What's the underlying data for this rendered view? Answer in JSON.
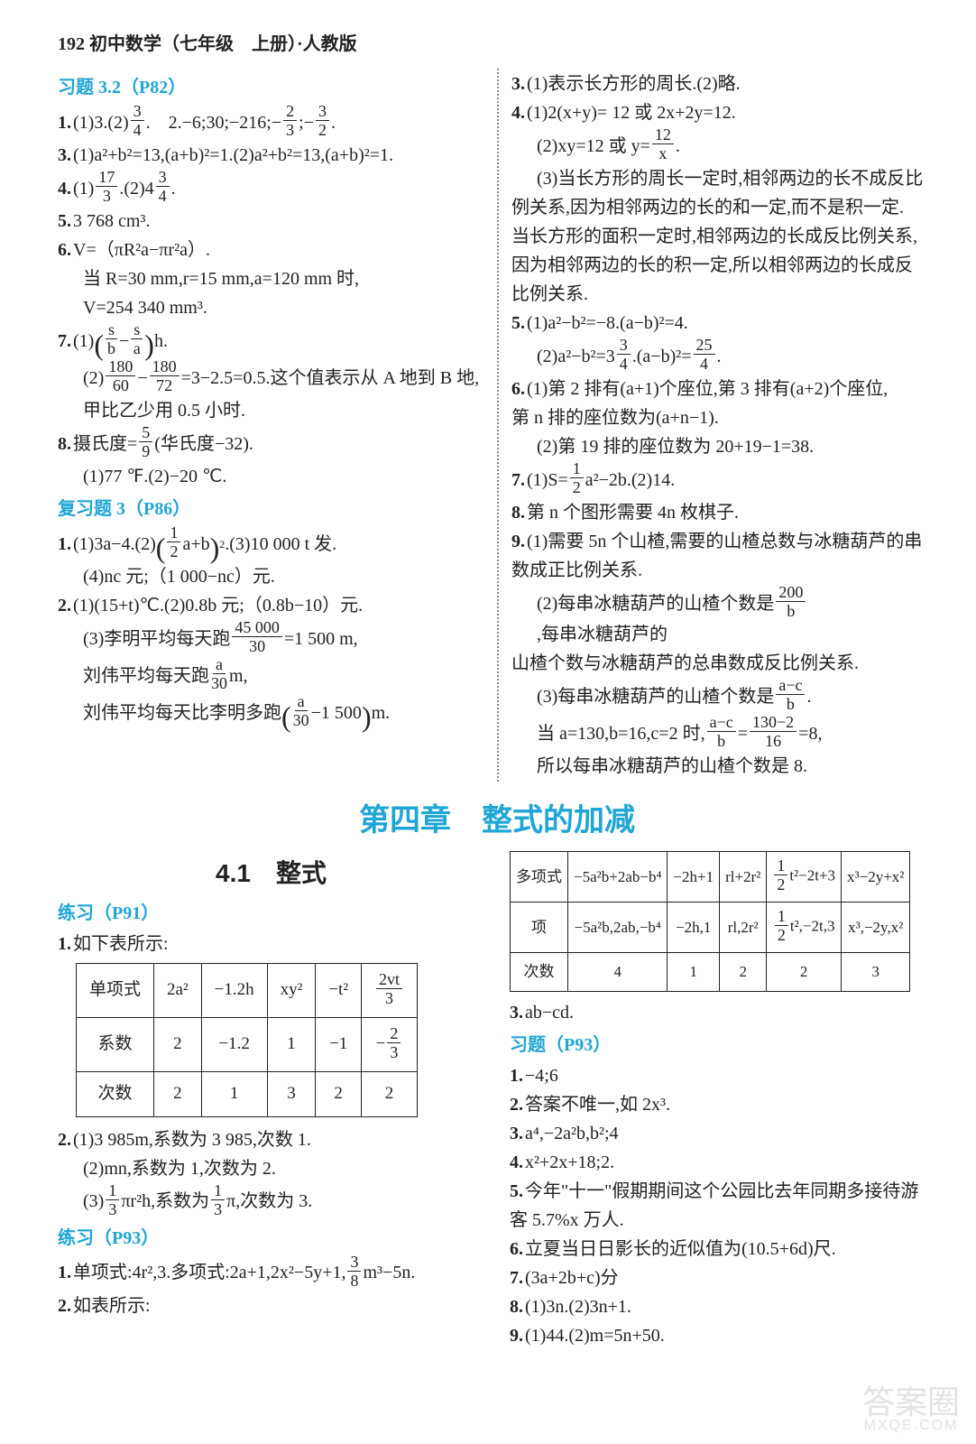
{
  "header": "192 初中数学（七年级　上册）·人教版",
  "top": {
    "left": {
      "sec1_title": "习题 3.2（P82）",
      "l1a": "1.",
      "l1b": "(1)3.(2)",
      "l1c": ".　2.−6;30;−216;−",
      "l1d": ";−",
      "l1e": ".",
      "l3": "3.",
      "l3b": "(1)a²+b²=13,(a+b)²=1.(2)a²+b²=13,(a+b)²=1.",
      "l4": "4.",
      "l4b": "(1)",
      "l4c": ".(2)4",
      "l4d": ".",
      "l5": "5.",
      "l5b": "3 768 cm³.",
      "l6": "6.",
      "l6b": "V=（πR²a−πr²a）.",
      "l6c": "当 R=30 mm,r=15 mm,a=120 mm 时,",
      "l6d": "V=254 340 mm³.",
      "l7": "7.",
      "l7b": "(1)",
      "l7c": "h.",
      "l7d": "(2)",
      "l7e": "=3−2.5=0.5.这个值表示从 A 地到 B 地,",
      "l7f": "甲比乙少用 0.5 小时.",
      "l8": "8.",
      "l8b": "摄氏度=",
      "l8c": "(华氏度−32).",
      "l8d": "(1)77 ℉.(2)−20 ℃.",
      "sec2_title": "复习题 3（P86）",
      "r1": "1.",
      "r1b": "(1)3a−4.(2)",
      "r1c": ".(3)10 000 t 发.",
      "r1d": "(4)nc 元;（1 000−nc）元.",
      "r2": "2.",
      "r2b": "(1)(15+t)℃.(2)0.8b 元;（0.8b−10）元.",
      "r2c": "(3)李明平均每天跑",
      "r2d": "=1 500 m,",
      "r2e": "刘伟平均每天跑",
      "r2f": " m,",
      "r2g": "刘伟平均每天比李明多跑",
      "r2h": "m.",
      "f3_4": {
        "n": "3",
        "d": "4"
      },
      "f2_3": {
        "n": "2",
        "d": "3"
      },
      "f3_2": {
        "n": "3",
        "d": "2"
      },
      "f17_3": {
        "n": "17",
        "d": "3"
      },
      "f_s_b": {
        "n": "s",
        "d": "b"
      },
      "f_s_a": {
        "n": "s",
        "d": "a"
      },
      "f180_60": {
        "n": "180",
        "d": "60"
      },
      "f180_72": {
        "n": "180",
        "d": "72"
      },
      "f5_9": {
        "n": "5",
        "d": "9"
      },
      "f12ab": {
        "n": "1",
        "d": "2"
      },
      "f12ab_txt": "a+b",
      "f45000_30": {
        "n": "45 000",
        "d": "30"
      },
      "fa_30": {
        "n": "a",
        "d": "30"
      },
      "fa_30m": {
        "n": "a",
        "d": "30"
      },
      "m1500": "−1 500"
    },
    "right": {
      "l3": "3.",
      "l3b": "(1)表示长方形的周长.(2)略.",
      "l4": "4.",
      "l4b": "(1)2(x+y)= 12 或 2x+2y=12.",
      "l4c": "(2)xy=12 或 y=",
      "l4d": ".",
      "l4e": "(3)当长方形的周长一定时,相邻两边的长不成反比",
      "l4f": "例关系,因为相邻两边的长的和一定,而不是积一定.",
      "l4g": "当长方形的面积一定时,相邻两边的长成反比例关系,",
      "l4h": "因为相邻两边的长的积一定,所以相邻两边的长成反",
      "l4i": "比例关系.",
      "l5": "5.",
      "l5b": "(1)a²−b²=−8.(a−b)²=4.",
      "l5c": "(2)a²−b²=3",
      "l5d": ".(a−b)²=",
      "l5e": ".",
      "l6": "6.",
      "l6b": "(1)第 2 排有(a+1)个座位,第 3 排有(a+2)个座位,",
      "l6c": "第 n 排的座位数为(a+n−1).",
      "l6d": "(2)第 19 排的座位数为 20+19−1=38.",
      "l7": "7.",
      "l7b": "(1)S=",
      "l7c": "a²−2b.(2)14.",
      "l8": "8.",
      "l8b": "第 n 个图形需要 4n 枚棋子.",
      "l9": "9.",
      "l9b": "(1)需要 5n 个山楂,需要的山楂总数与冰糖葫芦的串",
      "l9c": "数成正比例关系.",
      "l9d": "(2)每串冰糖葫芦的山楂个数是",
      "l9e": ",每串冰糖葫芦的",
      "l9f": "山楂个数与冰糖葫芦的总串数成反比例关系.",
      "l9g": "(3)每串冰糖葫芦的山楂个数是",
      "l9h": ".",
      "l9i": "当 a=130,b=16,c=2 时,",
      "l9j": "=",
      "l9k": "=8,",
      "l9l": "所以每串冰糖葫芦的山楂个数是 8.",
      "f12_x": {
        "n": "12",
        "d": "x"
      },
      "f3_4": {
        "n": "3",
        "d": "4"
      },
      "f25_4": {
        "n": "25",
        "d": "4"
      },
      "f1_2": {
        "n": "1",
        "d": "2"
      },
      "f200_b": {
        "n": "200",
        "d": "b"
      },
      "fac_b": {
        "n": "a−c",
        "d": "b"
      },
      "f1302_16": {
        "n": "130−2",
        "d": "16"
      }
    }
  },
  "chapter_title": "第四章　整式的加减",
  "bottom": {
    "left": {
      "section_title": "4.1　整式",
      "sec1": "练习（P91）",
      "l1": "1.",
      "l1b": "如下表所示:",
      "table1": {
        "rows": [
          [
            "单项式",
            "2a²",
            "−1.2h",
            "xy²",
            "−t²",
            "frac:2vt:3"
          ],
          [
            "系数",
            "2",
            "−1.2",
            "1",
            "−1",
            "mfrac:2:3"
          ],
          [
            "次数",
            "2",
            "1",
            "3",
            "2",
            "2"
          ]
        ]
      },
      "l2": "2.",
      "l2b": "(1)3 985m,系数为 3 985,次数 1.",
      "l2c": "(2)mn,系数为 1,次数为 2.",
      "l2d": "(3)",
      "l2e": "πr²h,系数为",
      "l2f": "π,次数为 3.",
      "sec2": "练习（P93）",
      "p1": "1.",
      "p1b": "单项式:4r²,3.多项式:2a+1,2x²−5y+1,",
      "p1c": "m³−5n.",
      "p2": "2.",
      "p2b": "如表所示:",
      "f1_3": {
        "n": "1",
        "d": "3"
      },
      "f3_8": {
        "n": "3",
        "d": "8"
      }
    },
    "right": {
      "table2": {
        "rows": [
          [
            "多项式",
            "−5a²b+2ab−b⁴",
            "−2h+1",
            "rl+2r²",
            "half:t²−2t+3",
            "x³−2y+x²"
          ],
          [
            "项",
            "−5a²b,2ab,−b⁴",
            "−2h,1",
            "rl,2r²",
            "half:t²,−2t,3",
            "x³,−2y,x²"
          ],
          [
            "次数",
            "4",
            "1",
            "2",
            "2",
            "3"
          ]
        ]
      },
      "l3": "3.",
      "l3b": "ab−cd.",
      "sec": "习题（P93）",
      "q1": "1.",
      "q1b": "−4;6",
      "q2": "2.",
      "q2b": "答案不唯一,如 2x³.",
      "q3": "3.",
      "q3b": "a⁴,−2a²b,b²;4",
      "q4": "4.",
      "q4b": "x²+2x+18;2.",
      "q5": "5.",
      "q5b": "今年\"十一\"假期期间这个公园比去年同期多接待游",
      "q5c": "客 5.7%x 万人.",
      "q6": "6.",
      "q6b": "立夏当日日影长的近似值为(10.5+6d)尺.",
      "q7": "7.",
      "q7b": "(3a+2b+c)分",
      "q8": "8.",
      "q8b": "(1)3n.(2)3n+1.",
      "q9": "9.",
      "q9b": "(1)44.(2)m=5n+50."
    }
  },
  "watermark": {
    "t1": "答案圈",
    "t2": "MXQE.COM"
  },
  "colors": {
    "accent": "#1fa5d6",
    "text": "#222222",
    "border": "#222222",
    "bg": "#ffffff"
  }
}
